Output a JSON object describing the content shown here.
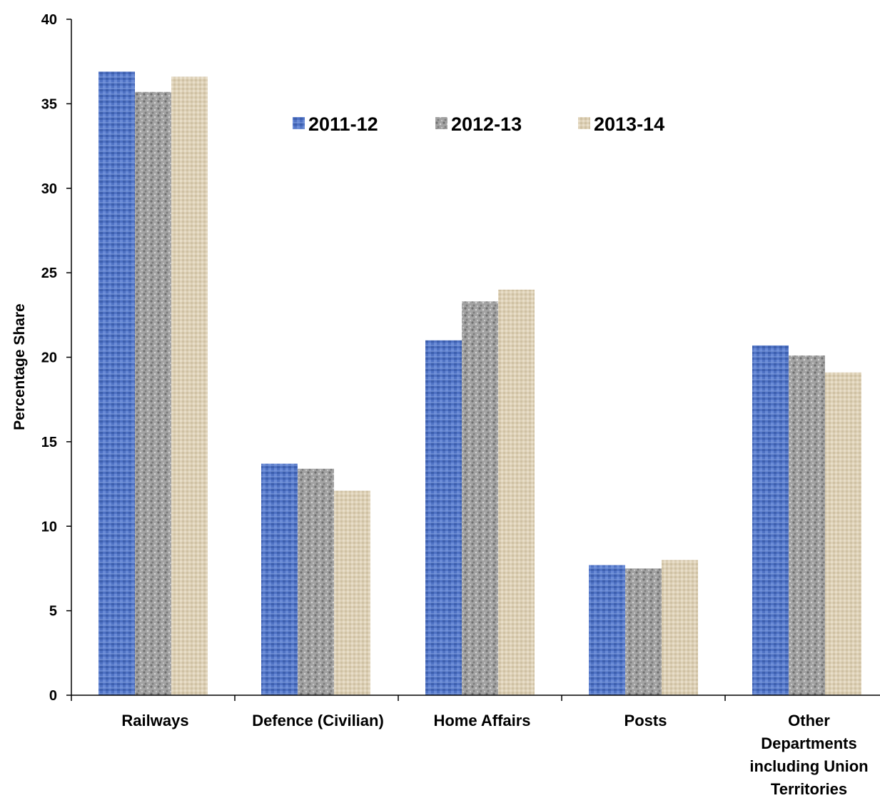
{
  "chart_data": {
    "type": "bar",
    "ylabel": "Percentage Share",
    "ylim": [
      0,
      40
    ],
    "yticks": [
      0,
      5,
      10,
      15,
      20,
      25,
      30,
      35,
      40
    ],
    "grid": false,
    "legend_position": "top-center",
    "categories": [
      [
        "Railways"
      ],
      [
        "Defence (Civilian)"
      ],
      [
        "Home Affairs"
      ],
      [
        "Posts"
      ],
      [
        "Other",
        "Departments",
        "including Union",
        "Territories"
      ]
    ],
    "series": [
      {
        "name": "2011-12",
        "values": [
          36.9,
          13.7,
          21.0,
          7.7,
          20.7
        ],
        "color": "#4f72c4",
        "pattern": "blue-weave"
      },
      {
        "name": "2012-13",
        "values": [
          35.7,
          13.4,
          23.3,
          7.5,
          20.1
        ],
        "color": "#9a9a9a",
        "pattern": "gray-granite"
      },
      {
        "name": "2013-14",
        "values": [
          36.6,
          12.1,
          24.0,
          8.0,
          19.1
        ],
        "color": "#ddd0b6",
        "pattern": "tan-canvas"
      }
    ]
  }
}
